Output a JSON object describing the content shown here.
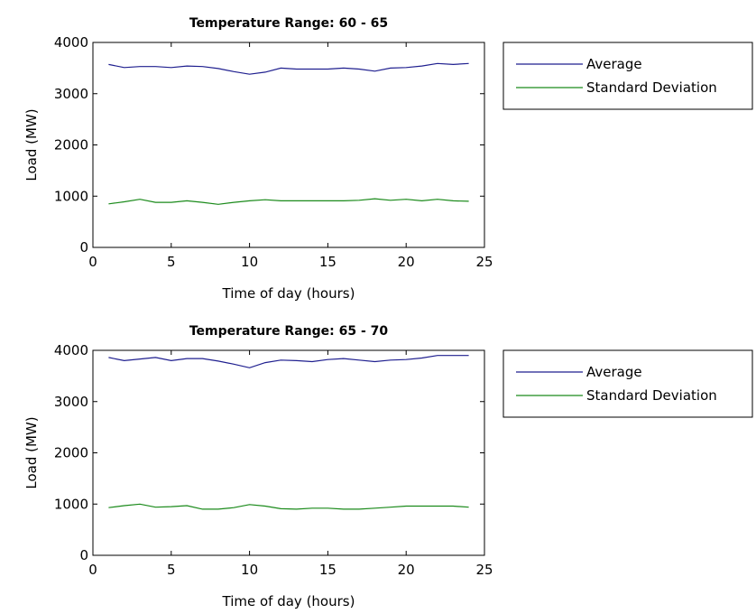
{
  "colors": {
    "average": "#1f1f8f",
    "std": "#1a8a1a",
    "axis": "#000000",
    "background": "#ffffff"
  },
  "chart_data": [
    {
      "type": "line",
      "title": "Temperature Range: 60 - 65",
      "xlabel": "Time of day (hours)",
      "ylabel": "Load (MW)",
      "xlim": [
        0,
        25
      ],
      "ylim": [
        0,
        4000
      ],
      "xticks": [
        0,
        5,
        10,
        15,
        20,
        25
      ],
      "yticks": [
        0,
        1000,
        2000,
        3000,
        4000
      ],
      "grid": false,
      "legend_position": "outside-right",
      "x": [
        1,
        2,
        3,
        4,
        5,
        6,
        7,
        8,
        9,
        10,
        11,
        12,
        13,
        14,
        15,
        16,
        17,
        18,
        19,
        20,
        21,
        22,
        23,
        24
      ],
      "series": [
        {
          "name": "Average",
          "color": "#1f1f8f",
          "values": [
            3570,
            3510,
            3530,
            3530,
            3510,
            3540,
            3530,
            3490,
            3430,
            3380,
            3420,
            3500,
            3480,
            3480,
            3480,
            3500,
            3480,
            3440,
            3500,
            3510,
            3540,
            3590,
            3570,
            3590
          ]
        },
        {
          "name": "Standard Deviation",
          "color": "#1a8a1a",
          "values": [
            850,
            890,
            940,
            880,
            880,
            910,
            880,
            840,
            880,
            910,
            930,
            910,
            910,
            910,
            910,
            910,
            920,
            950,
            920,
            940,
            910,
            940,
            910,
            900
          ]
        }
      ]
    },
    {
      "type": "line",
      "title": "Temperature Range: 65 - 70",
      "xlabel": "Time of day (hours)",
      "ylabel": "Load (MW)",
      "xlim": [
        0,
        25
      ],
      "ylim": [
        0,
        4000
      ],
      "xticks": [
        0,
        5,
        10,
        15,
        20,
        25
      ],
      "yticks": [
        0,
        1000,
        2000,
        3000,
        4000
      ],
      "grid": false,
      "legend_position": "outside-right",
      "x": [
        1,
        2,
        3,
        4,
        5,
        6,
        7,
        8,
        9,
        10,
        11,
        12,
        13,
        14,
        15,
        16,
        17,
        18,
        19,
        20,
        21,
        22,
        23,
        24
      ],
      "series": [
        {
          "name": "Average",
          "color": "#1f1f8f",
          "values": [
            3860,
            3800,
            3830,
            3860,
            3800,
            3840,
            3840,
            3790,
            3730,
            3660,
            3760,
            3810,
            3800,
            3780,
            3820,
            3840,
            3810,
            3780,
            3810,
            3820,
            3850,
            3900,
            3900,
            3900
          ]
        },
        {
          "name": "Standard Deviation",
          "color": "#1a8a1a",
          "values": [
            930,
            970,
            1000,
            940,
            950,
            970,
            900,
            900,
            930,
            990,
            960,
            910,
            900,
            920,
            920,
            900,
            900,
            920,
            940,
            960,
            960,
            960,
            960,
            940
          ]
        }
      ]
    }
  ]
}
